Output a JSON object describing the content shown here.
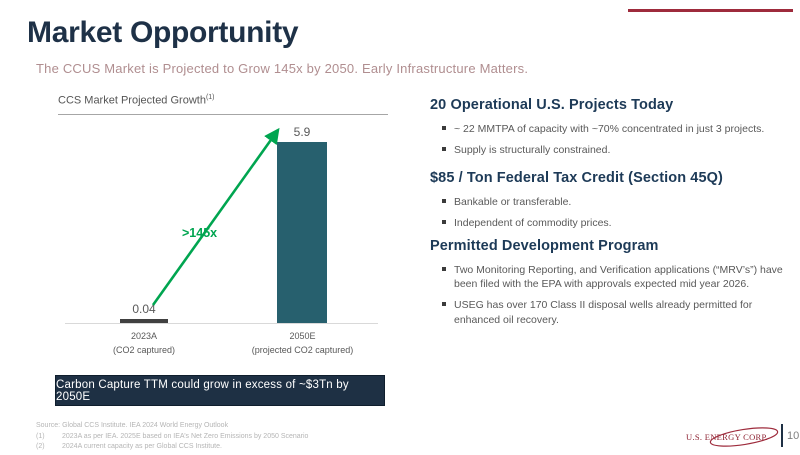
{
  "slide": {
    "title": "Market Opportunity",
    "subtitle": "The CCUS Market is Projected to Grow 145x by 2050.  Early Infrastructure Matters.",
    "page_number": "10",
    "logo_text": "U.S. ENERGY CORP."
  },
  "chart": {
    "title": "CCS Market Projected Growth",
    "title_superscript": "(1)",
    "growth_label": ">145x"
  },
  "chart_data": {
    "type": "bar",
    "title": "CCS Market Projected Growth (1)",
    "categories": [
      "2023A (CO2 captured)",
      "2050E (projected CO2 captured)"
    ],
    "values": [
      0.04,
      5.9
    ],
    "ticks": [
      {
        "year": "2023A",
        "sub": "(CO2 captured)"
      },
      {
        "year": "2050E",
        "sub": "(projected CO2 captured)"
      }
    ],
    "annotation": ">145x",
    "xlabel": "",
    "ylabel": "",
    "ylim": [
      0,
      6.5
    ],
    "grid": false,
    "legend": false,
    "bar_colors": [
      "#404040",
      "#27606e"
    ]
  },
  "callout": {
    "text": "Carbon Capture TTM could grow in excess of ~$3Tn by 2050E"
  },
  "sections": [
    {
      "heading": "20 Operational U.S. Projects Today",
      "bullets": [
        "~ 22 MMTPA of capacity with ~70% concentrated in just 3 projects.",
        "Supply is structurally constrained."
      ]
    },
    {
      "heading": "$85 / Ton Federal Tax Credit (Section 45Q)",
      "bullets": [
        "Bankable or transferable.",
        "Independent of commodity prices."
      ]
    },
    {
      "heading": "Permitted Development Program",
      "bullets": [
        "Two Monitoring Reporting, and Verification applications (“MRV’s”) have been filed with the EPA with approvals expected mid year 2026.",
        "USEG has over 170 Class II disposal wells already permitted for enhanced oil recovery."
      ]
    }
  ],
  "footnotes": {
    "source": "Source: Global CCS Institute. IEA 2024 World Energy Outlook",
    "items": [
      {
        "num": "(1)",
        "text": "2023A as per IEA. 2025E based on IEA’s Net Zero Emissions by 2050 Scenario"
      },
      {
        "num": "(2)",
        "text": "2024A current capacity as per Global CCS Institute."
      }
    ]
  },
  "colors": {
    "title_navy": "#1e3147",
    "heading_navy": "#1d3a57",
    "bar_teal": "#27606e",
    "bar_charcoal": "#404040",
    "accent_green": "#00a550",
    "brand_red": "#9e2b3c",
    "callout_bg": "#1e3044",
    "subtitle_rose": "#b08e90"
  }
}
